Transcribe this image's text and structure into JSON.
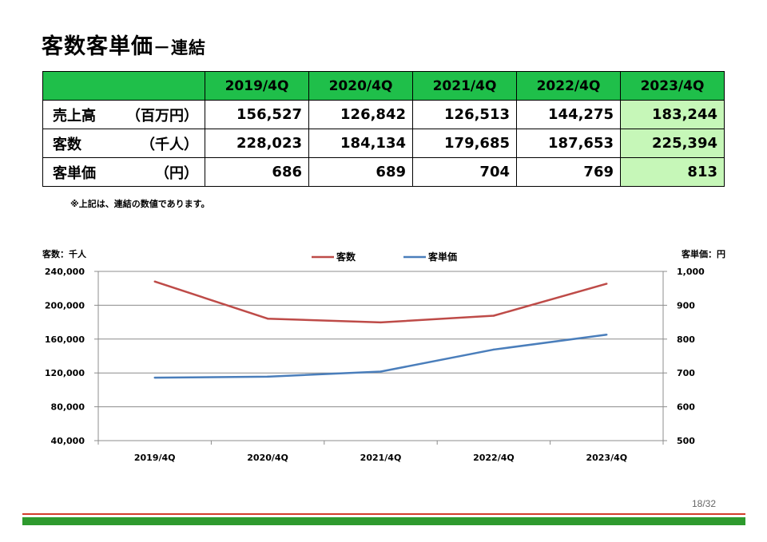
{
  "header": {
    "title": "客数客単価",
    "subtitle": "－連結"
  },
  "table": {
    "columns": [
      "2019/4Q",
      "2020/4Q",
      "2021/4Q",
      "2022/4Q",
      "2023/4Q"
    ],
    "rows": [
      {
        "label": "売上高",
        "unit": "（百万円）",
        "values": [
          "156,527",
          "126,842",
          "126,513",
          "144,275",
          "183,244"
        ]
      },
      {
        "label": "客数",
        "unit": "（千人）",
        "values": [
          "228,023",
          "184,134",
          "179,685",
          "187,653",
          "225,394"
        ]
      },
      {
        "label": "客単価",
        "unit": "（円）",
        "values": [
          "686",
          "689",
          "704",
          "769",
          "813"
        ]
      }
    ]
  },
  "note": "※上記は、連結の数値であります。",
  "chart_data": {
    "type": "line",
    "categories": [
      "2019/4Q",
      "2020/4Q",
      "2021/4Q",
      "2022/4Q",
      "2023/4Q"
    ],
    "series": [
      {
        "name": "客数",
        "axis": "left",
        "color": "#be4b48",
        "values": [
          228023,
          184134,
          179685,
          187653,
          225394
        ]
      },
      {
        "name": "客単価",
        "axis": "right",
        "color": "#4a7ebb",
        "values": [
          686,
          689,
          704,
          769,
          813
        ]
      }
    ],
    "ylabel_left": "客数：千人",
    "ylabel_right": "客単価：円",
    "ylim_left": [
      40000,
      240000
    ],
    "ylim_right": [
      500,
      1000
    ],
    "yticks_left": [
      "240,000",
      "200,000",
      "160,000",
      "120,000",
      "80,000",
      "40,000"
    ],
    "yticks_right": [
      "1,000",
      "900",
      "800",
      "700",
      "600",
      "500"
    ],
    "grid": true,
    "legend": "top-center"
  },
  "footer": {
    "page": "18/32"
  },
  "colors": {
    "header_green": "#1fbf4a",
    "highlight_green": "#c6f7b8",
    "line_red": "#d23c2a",
    "bar_green": "#2e9a2e"
  }
}
